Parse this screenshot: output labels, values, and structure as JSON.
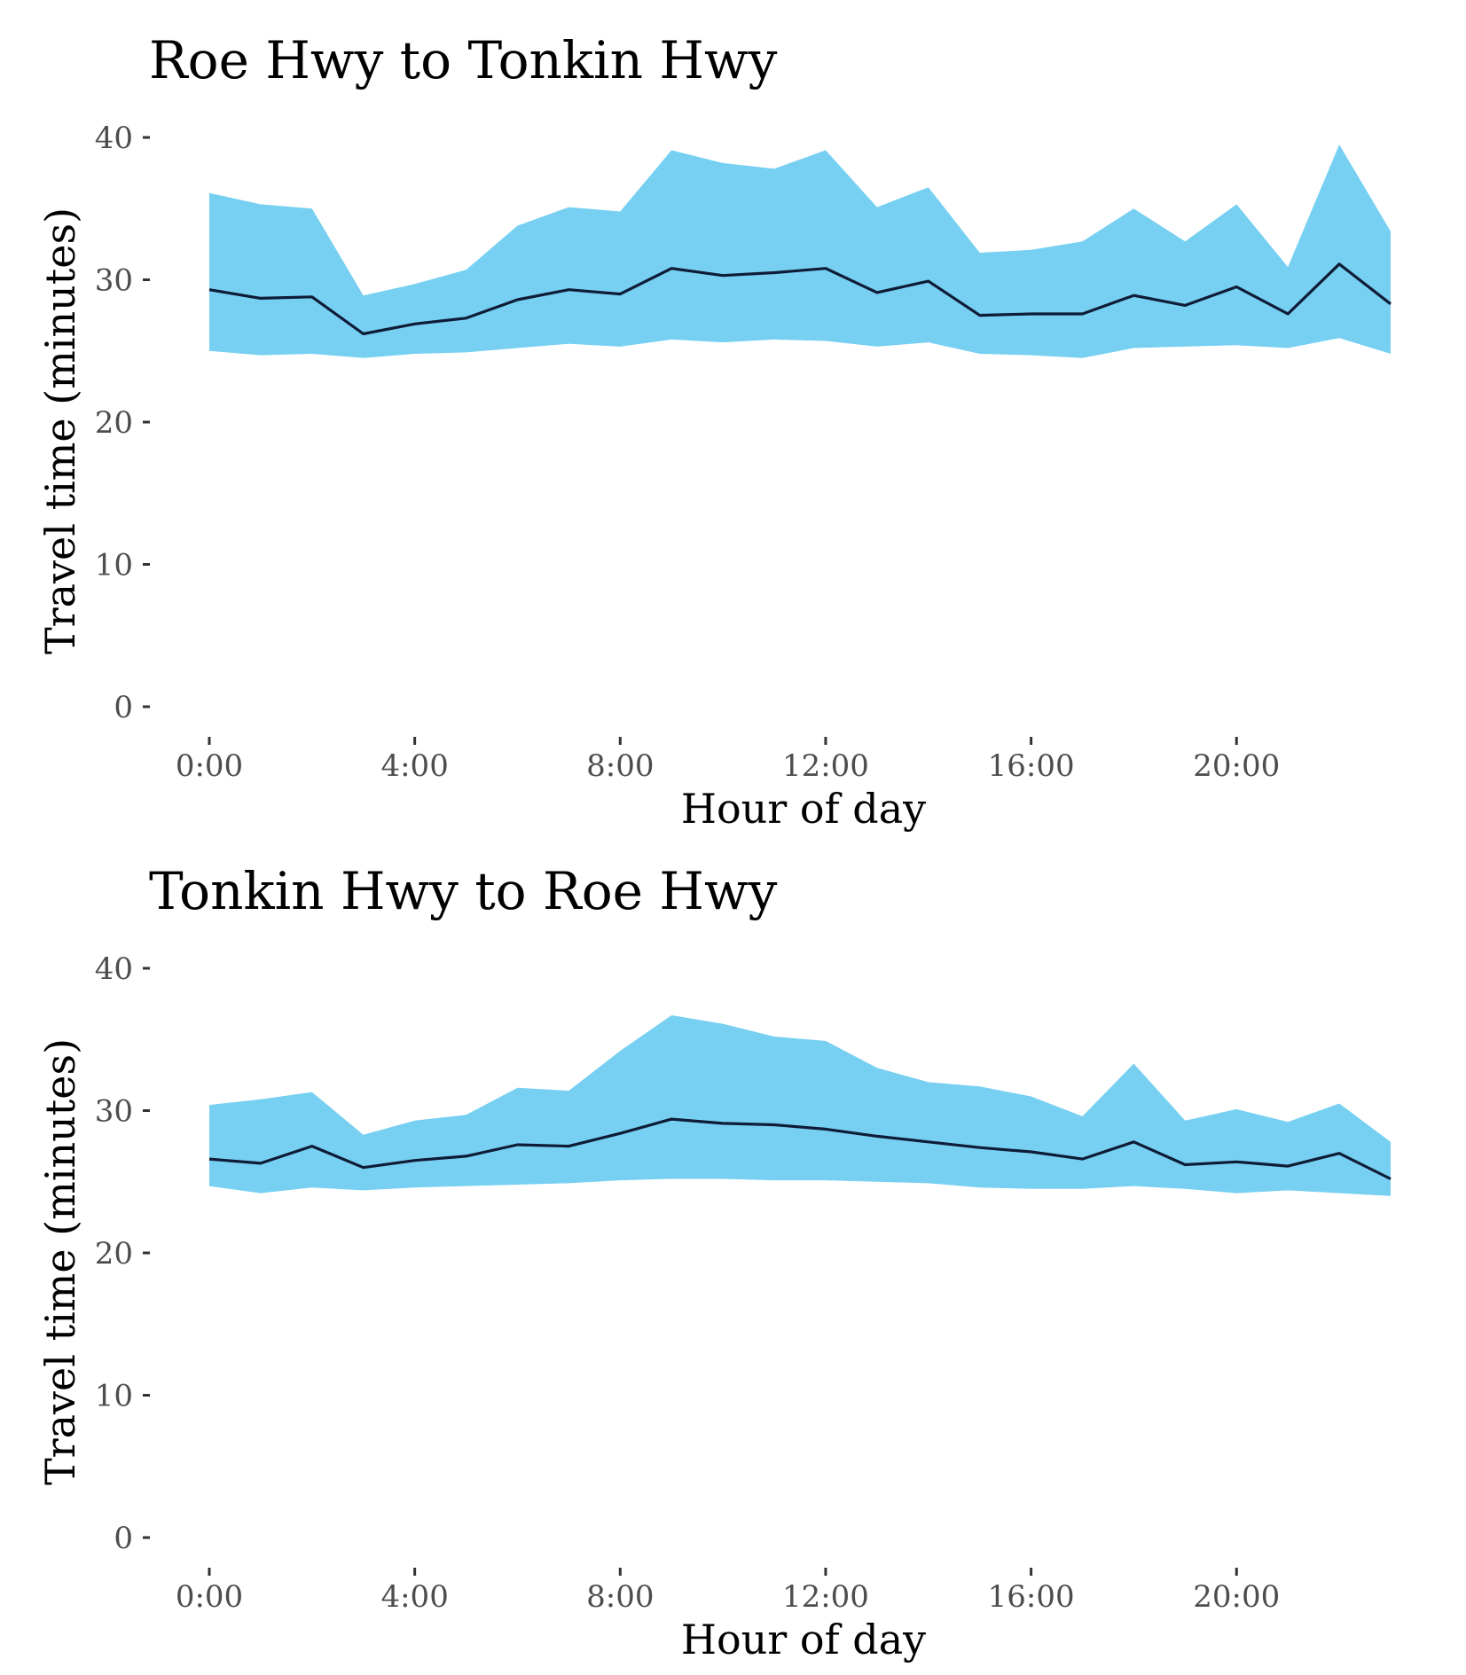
{
  "colors": {
    "band": "#77d0f2",
    "line": "#0f1c36",
    "tick": "#333333",
    "tick_label": "#4d4d4d"
  },
  "chart_data": [
    {
      "type": "area",
      "title": "Roe Hwy to Tonkin Hwy",
      "xlabel": "Hour of day",
      "ylabel": "Travel time (minutes)",
      "xlim": [
        0,
        23
      ],
      "ylim": [
        0,
        40
      ],
      "x_ticks": [
        0,
        4,
        8,
        12,
        16,
        20
      ],
      "x_tick_labels": [
        "0:00",
        "4:00",
        "8:00",
        "12:00",
        "16:00",
        "20:00"
      ],
      "y_ticks": [
        0,
        10,
        20,
        30,
        40
      ],
      "y_tick_labels": [
        "0",
        "10",
        "20",
        "30",
        "40"
      ],
      "grid": false,
      "x": [
        0,
        1,
        2,
        3,
        4,
        5,
        6,
        7,
        8,
        9,
        10,
        11,
        12,
        13,
        14,
        15,
        16,
        17,
        18,
        19,
        20,
        21,
        22,
        23
      ],
      "series": [
        {
          "type": "line",
          "values": [
            29.3,
            28.7,
            28.8,
            26.2,
            26.9,
            27.3,
            28.6,
            29.3,
            29.0,
            30.8,
            30.3,
            30.5,
            30.8,
            29.1,
            29.9,
            27.5,
            27.6,
            27.6,
            28.9,
            28.2,
            29.5,
            27.6,
            31.1,
            28.3
          ]
        },
        {
          "type": "band",
          "lower": [
            25.0,
            24.7,
            24.8,
            24.5,
            24.8,
            24.9,
            25.2,
            25.5,
            25.3,
            25.8,
            25.6,
            25.8,
            25.7,
            25.3,
            25.6,
            24.8,
            24.7,
            24.5,
            25.2,
            25.3,
            25.4,
            25.2,
            25.9,
            24.8
          ],
          "upper": [
            36.1,
            35.3,
            35.0,
            28.9,
            29.7,
            30.7,
            33.8,
            35.1,
            34.8,
            39.1,
            38.2,
            37.8,
            39.1,
            35.1,
            36.5,
            31.9,
            32.1,
            32.7,
            35.0,
            32.7,
            35.3,
            30.9,
            39.5,
            33.4
          ]
        }
      ]
    },
    {
      "type": "area",
      "title": "Tonkin Hwy to Roe Hwy",
      "xlabel": "Hour of day",
      "ylabel": "Travel time (minutes)",
      "xlim": [
        0,
        23
      ],
      "ylim": [
        0,
        40
      ],
      "x_ticks": [
        0,
        4,
        8,
        12,
        16,
        20
      ],
      "x_tick_labels": [
        "0:00",
        "4:00",
        "8:00",
        "12:00",
        "16:00",
        "20:00"
      ],
      "y_ticks": [
        0,
        10,
        20,
        30,
        40
      ],
      "y_tick_labels": [
        "0",
        "10",
        "20",
        "30",
        "40"
      ],
      "grid": false,
      "x": [
        0,
        1,
        2,
        3,
        4,
        5,
        6,
        7,
        8,
        9,
        10,
        11,
        12,
        13,
        14,
        15,
        16,
        17,
        18,
        19,
        20,
        21,
        22,
        23
      ],
      "series": [
        {
          "type": "line",
          "values": [
            26.6,
            26.3,
            27.5,
            26.0,
            26.5,
            26.8,
            27.6,
            27.5,
            28.4,
            29.4,
            29.1,
            29.0,
            28.7,
            28.2,
            27.8,
            27.4,
            27.1,
            26.6,
            27.8,
            26.2,
            26.4,
            26.1,
            27.0,
            25.2
          ]
        },
        {
          "type": "band",
          "lower": [
            24.7,
            24.2,
            24.6,
            24.4,
            24.6,
            24.7,
            24.8,
            24.9,
            25.1,
            25.2,
            25.2,
            25.1,
            25.1,
            25.0,
            24.9,
            24.6,
            24.5,
            24.5,
            24.7,
            24.5,
            24.2,
            24.4,
            24.2,
            24.0
          ],
          "upper": [
            30.4,
            30.8,
            31.3,
            28.3,
            29.3,
            29.7,
            31.6,
            31.4,
            34.2,
            36.7,
            36.1,
            35.2,
            34.9,
            33.0,
            32.0,
            31.7,
            31.0,
            29.6,
            33.3,
            29.3,
            30.1,
            29.2,
            30.5,
            27.8
          ]
        }
      ]
    }
  ]
}
